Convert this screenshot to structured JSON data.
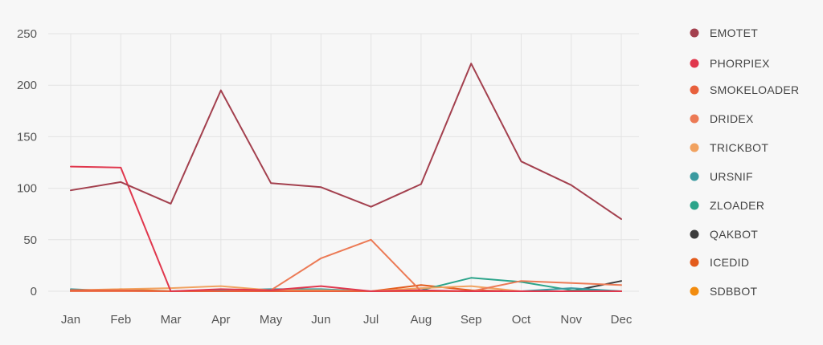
{
  "chart_data": {
    "type": "line",
    "title": "",
    "xlabel": "",
    "ylabel": "",
    "categories": [
      "Jan",
      "Feb",
      "Mar",
      "Apr",
      "May",
      "Jun",
      "Jul",
      "Aug",
      "Sep",
      "Oct",
      "Nov",
      "Dec"
    ],
    "ylim": [
      0,
      250
    ],
    "yticks": [
      "0",
      "50",
      "100",
      "150",
      "200",
      "250"
    ],
    "grid": true,
    "legend_position": "right",
    "series": [
      {
        "name": "EMOTET",
        "color": "#a3404e",
        "values": [
          98,
          106,
          85,
          195,
          105,
          101,
          82,
          104,
          221,
          126,
          103,
          70
        ]
      },
      {
        "name": "PHORPIEX",
        "color": "#e0374d",
        "values": [
          121,
          120,
          0,
          2,
          1,
          5,
          0,
          1,
          0,
          0,
          0,
          0
        ]
      },
      {
        "name": "SMOKELOADER",
        "color": "#e8603c",
        "values": [
          1,
          1,
          0,
          0,
          0,
          0,
          0,
          0,
          0,
          0,
          0,
          0
        ]
      },
      {
        "name": "DRIDEX",
        "color": "#ec7a55",
        "values": [
          0,
          0,
          0,
          0,
          1,
          32,
          50,
          0,
          0,
          10,
          8,
          6
        ]
      },
      {
        "name": "TRICKBOT",
        "color": "#f1a260",
        "values": [
          1,
          2,
          3,
          5,
          1,
          1,
          0,
          3,
          5,
          0,
          0,
          0
        ]
      },
      {
        "name": "URSNIF",
        "color": "#3a9aa0",
        "values": [
          2,
          0,
          0,
          1,
          2,
          2,
          0,
          0,
          0,
          0,
          3,
          0
        ]
      },
      {
        "name": "ZLOADER",
        "color": "#2ba48a",
        "values": [
          0,
          1,
          0,
          1,
          1,
          0,
          0,
          1,
          13,
          9,
          1,
          0
        ]
      },
      {
        "name": "QAKBOT",
        "color": "#3b3b3b",
        "values": [
          1,
          0,
          0,
          0,
          0,
          0,
          0,
          0,
          0,
          0,
          0,
          10
        ]
      },
      {
        "name": "ICEDID",
        "color": "#e35b1c",
        "values": [
          0,
          0,
          0,
          0,
          0,
          0,
          0,
          6,
          1,
          0,
          0,
          0
        ]
      },
      {
        "name": "SDBBOT",
        "color": "#f28c0f",
        "values": [
          0,
          2,
          0,
          0,
          0,
          0,
          0,
          0,
          0,
          0,
          0,
          0
        ]
      }
    ]
  }
}
